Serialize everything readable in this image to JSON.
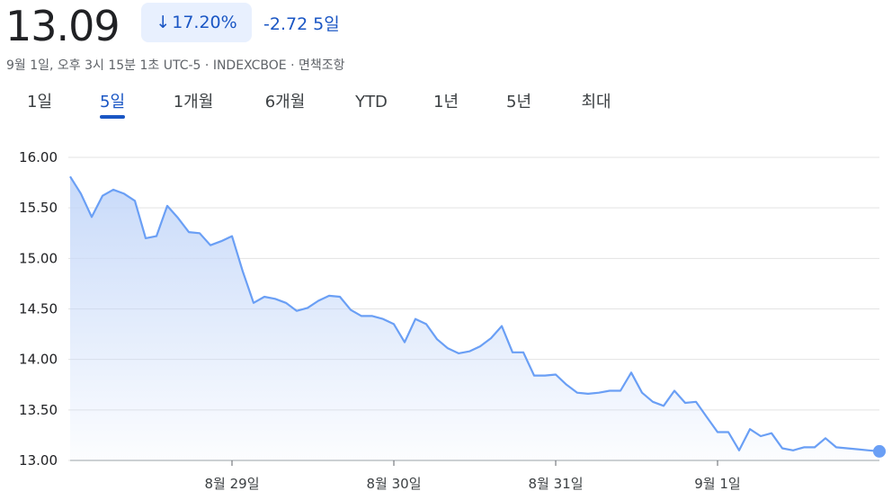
{
  "header": {
    "price": "13.09",
    "change_arrow": "↓",
    "change_percent": "17.20%",
    "change_abs": "-2.72",
    "change_period": "5일",
    "meta": "9월 1일, 오후 3시 15분 1초 UTC-5 · INDEXCBOE · 면책조항"
  },
  "tabs": [
    {
      "label": "1일",
      "active": false
    },
    {
      "label": "5일",
      "active": true
    },
    {
      "label": "1개월",
      "active": false
    },
    {
      "label": "6개월",
      "active": false
    },
    {
      "label": "YTD",
      "active": false
    },
    {
      "label": "1년",
      "active": false
    },
    {
      "label": "5년",
      "active": false
    },
    {
      "label": "최대",
      "active": false
    }
  ],
  "colors": {
    "line": "#6a9ff5",
    "fill_top": "#c5d8f9",
    "accent": "#1a56c4",
    "pill_bg": "#e8f0fe"
  },
  "chart_data": {
    "type": "area",
    "title": "",
    "xlabel": "",
    "ylabel": "",
    "ylim": [
      13.0,
      16.0
    ],
    "yticks": [
      "16.00",
      "15.50",
      "15.00",
      "14.50",
      "14.00",
      "13.50",
      "13.00"
    ],
    "xlim": [
      0,
      75
    ],
    "xticks": [
      {
        "label": "8월 29일",
        "x": 15
      },
      {
        "label": "8월 30일",
        "x": 30
      },
      {
        "label": "8월 31일",
        "x": 45
      },
      {
        "label": "9월 1일",
        "x": 60
      }
    ],
    "grid": true,
    "series": [
      {
        "values": [
          15.81,
          15.64,
          15.41,
          15.62,
          15.68,
          15.64,
          15.57,
          15.2,
          15.22,
          15.52,
          15.4,
          15.26,
          15.25,
          15.13,
          15.17,
          15.22,
          14.87,
          14.56,
          14.62,
          14.6,
          14.56,
          14.48,
          14.51,
          14.58,
          14.63,
          14.62,
          14.49,
          14.43,
          14.43,
          14.4,
          14.35,
          14.17,
          14.4,
          14.35,
          14.2,
          14.11,
          14.06,
          14.08,
          14.13,
          14.21,
          14.33,
          14.07,
          14.07,
          13.84,
          13.84,
          13.85,
          13.75,
          13.67,
          13.66,
          13.67,
          13.69,
          13.69,
          13.87,
          13.67,
          13.58,
          13.54,
          13.69,
          13.57,
          13.58,
          13.43,
          13.28,
          13.28,
          13.1,
          13.31,
          13.24,
          13.27,
          13.12,
          13.1,
          13.13,
          13.13,
          13.22,
          13.13,
          13.12,
          13.11,
          13.1,
          13.09
        ]
      }
    ],
    "last_value": 13.09
  }
}
